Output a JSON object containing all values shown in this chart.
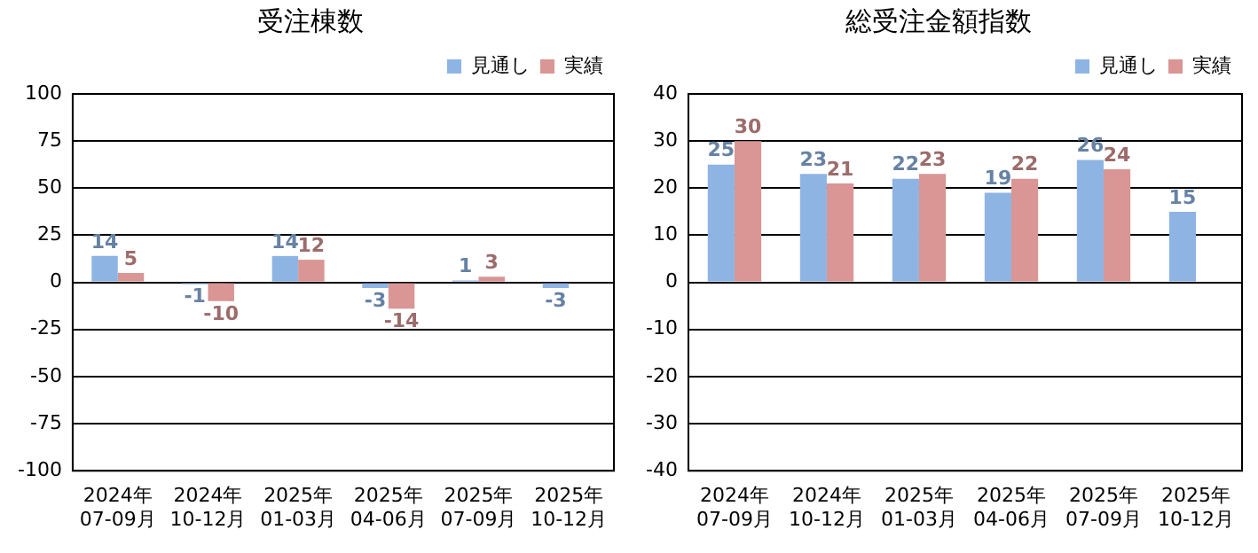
{
  "chart_data": [
    {
      "type": "bar",
      "title": "受注棟数",
      "categories": [
        "2024年\n07-09月",
        "2024年\n10-12月",
        "2025年\n01-03月",
        "2025年\n04-06月",
        "2025年\n07-09月",
        "2025年\n10-12月"
      ],
      "series": [
        {
          "name": "見通し",
          "color": "#8eb4e3",
          "values": [
            14,
            -1,
            14,
            -3,
            1,
            -3
          ]
        },
        {
          "name": "実績",
          "color": "#d99694",
          "values": [
            5,
            -10,
            12,
            -14,
            3,
            null
          ]
        }
      ],
      "ylim": [
        -100,
        100
      ],
      "yticks": [
        -100,
        -75,
        -50,
        -25,
        0,
        25,
        50,
        75,
        100
      ],
      "grid": "y",
      "legend": "top right",
      "data_labels": true
    },
    {
      "type": "bar",
      "title": "総受注金額指数",
      "categories": [
        "2024年\n07-09月",
        "2024年\n10-12月",
        "2025年\n01-03月",
        "2025年\n04-06月",
        "2025年\n07-09月",
        "2025年\n10-12月"
      ],
      "series": [
        {
          "name": "見通し",
          "color": "#8eb4e3",
          "values": [
            25,
            23,
            22,
            19,
            26,
            15
          ]
        },
        {
          "name": "実績",
          "color": "#d99694",
          "values": [
            30,
            21,
            23,
            22,
            24,
            null
          ]
        }
      ],
      "ylim": [
        -40,
        40
      ],
      "yticks": [
        -40,
        -30,
        -20,
        -10,
        0,
        10,
        20,
        30,
        40
      ],
      "grid": "y",
      "legend": "top right",
      "data_labels": true
    }
  ]
}
